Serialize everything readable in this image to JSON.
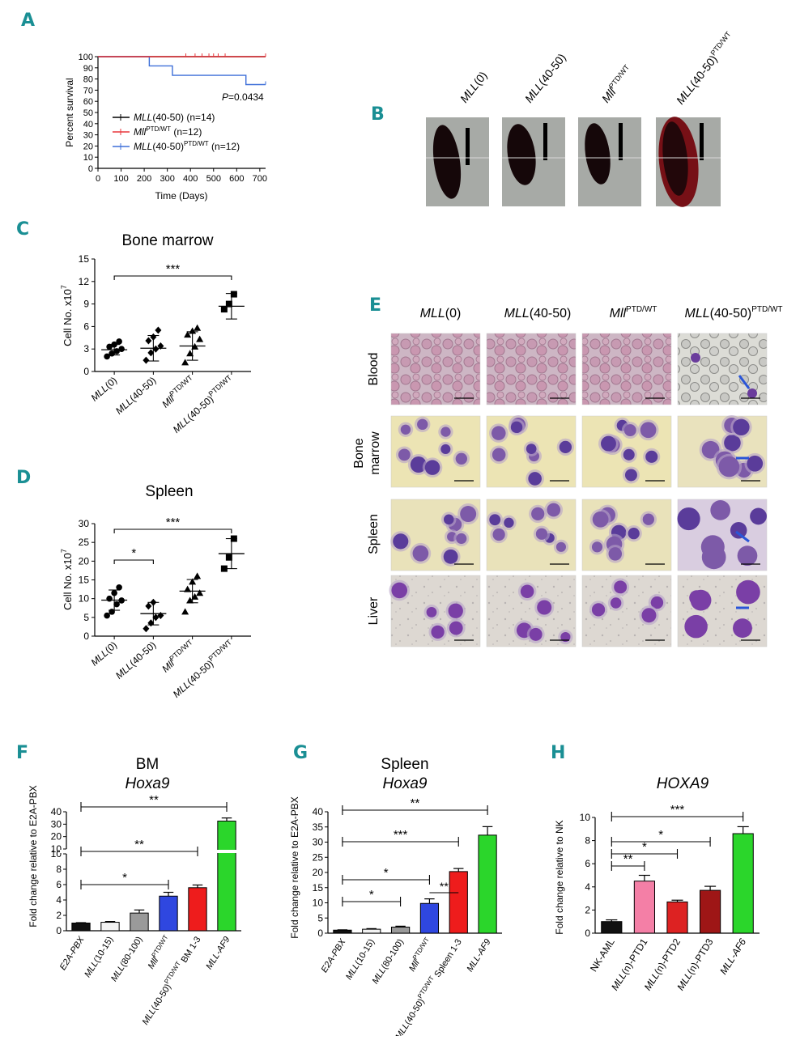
{
  "colors": {
    "panel_label": "#1a8f94",
    "black_series": "#000000",
    "red_series": "#e8373c",
    "blue_series": "#3d6fd8",
    "bar_black": "#111111",
    "bar_white": "#f2f2f2",
    "bar_gray": "#9a9a9a",
    "bar_blue": "#2f47e0",
    "bar_red": "#ee1c1c",
    "bar_green": "#2bd62b",
    "bar_pink": "#f47fa6",
    "bar_crimson": "#dd2222",
    "bar_darkred": "#9e1616"
  },
  "panels": {
    "A": {
      "label": "A",
      "ylabel": "Percent survival",
      "xlabel": "Time (Days)",
      "pvalue_prefix": "P",
      "pvalue_rest": "=0.0434",
      "legend": [
        {
          "pre": "MLL",
          "mid": "(40-50)",
          "sup": "",
          "post": " (n=14)"
        },
        {
          "pre": "Mll",
          "mid": "",
          "sup": "PTD/WT",
          "post": " (n=12)"
        },
        {
          "pre": "MLL",
          "mid": "(40-50)",
          "sup": "PTD/WT",
          "post": " (n=12)"
        }
      ]
    },
    "B": {
      "label": "B",
      "columns": [
        {
          "pre": "MLL",
          "mid": "(0)",
          "sup": ""
        },
        {
          "pre": "MLL",
          "mid": "(40-50)",
          "sup": ""
        },
        {
          "pre": "Mll",
          "mid": "",
          "sup": "PTD/WT"
        },
        {
          "pre": "MLL",
          "mid": "(40-50)",
          "sup": "PTD/WT"
        }
      ]
    },
    "C": {
      "label": "C",
      "title": "Bone marrow",
      "ylabel_main": "Cell No. x10",
      "ylabel_sup": "7",
      "sig": "***"
    },
    "D": {
      "label": "D",
      "title": "Spleen",
      "ylabel_main": "Cell No. x10",
      "ylabel_sup": "7",
      "sig_top": "***",
      "sig_low": "*"
    },
    "E": {
      "label": "E",
      "columns": [
        {
          "pre": "MLL",
          "mid": "(0)",
          "sup": ""
        },
        {
          "pre": "MLL",
          "mid": "(40-50)",
          "sup": ""
        },
        {
          "pre": "Mll",
          "mid": "",
          "sup": "PTD/WT"
        },
        {
          "pre": "MLL",
          "mid": "(40-50)",
          "sup": "PTD/WT"
        }
      ],
      "rows": [
        "Blood",
        "Bone",
        "marrow",
        "Spleen",
        "Liver"
      ]
    },
    "F": {
      "label": "F",
      "title1": "BM",
      "title2": "Hoxa9",
      "ylabel": "Fold change relative to E2A-PBX",
      "suffix": "BM 1-3",
      "sig": [
        "**",
        "**",
        "*"
      ]
    },
    "G": {
      "label": "G",
      "title1": "Spleen",
      "title2": "Hoxa9",
      "ylabel": "Fold change relative to E2A-PBX",
      "suffix": "Spleen 1-3",
      "sig": [
        "**",
        "***",
        "*",
        "*",
        "**"
      ]
    },
    "H": {
      "label": "H",
      "title": "HOXA9",
      "ylabel": "Fold change relative to NK",
      "sig": [
        "***",
        "*",
        "*",
        "**"
      ]
    }
  },
  "chart_data": [
    {
      "panel": "A",
      "type": "line",
      "xlabel": "Time (Days)",
      "ylabel": "Percent survival",
      "xlim": [
        0,
        725
      ],
      "ylim": [
        0,
        100
      ],
      "xticks": [
        0,
        100,
        200,
        300,
        400,
        500,
        600,
        700
      ],
      "yticks": [
        0,
        10,
        20,
        30,
        40,
        50,
        60,
        70,
        80,
        90,
        100
      ],
      "series": [
        {
          "name": "MLL(40-50) (n=14)",
          "x": [
            0,
            725
          ],
          "y": [
            100,
            100
          ]
        },
        {
          "name": "Mll PTD/WT (n=12)",
          "x": [
            0,
            725
          ],
          "y": [
            100,
            100
          ],
          "censor_x": [
            380,
            420,
            450,
            480,
            500,
            520,
            550,
            725
          ]
        },
        {
          "name": "MLL(40-50) PTD/WT (n=12)",
          "x": [
            0,
            222,
            222,
            322,
            322,
            640,
            640,
            725
          ],
          "y": [
            100,
            100,
            91.7,
            91.7,
            83.3,
            83.3,
            75,
            75
          ],
          "censor_x": [
            725
          ]
        }
      ],
      "annotation": "P=0.0434"
    },
    {
      "panel": "C",
      "type": "scatter",
      "title": "Bone marrow",
      "ylabel": "Cell No. x10^7",
      "ylim": [
        0,
        15
      ],
      "yticks": [
        0,
        3,
        6,
        9,
        12,
        15
      ],
      "categories": [
        "MLL(0)",
        "MLL(40-50)",
        "Mll PTD/WT",
        "MLL(40-50) PTD/WT"
      ],
      "points": [
        [
          2.0,
          2.4,
          2.7,
          3.0,
          3.3,
          3.6,
          4.0
        ],
        [
          1.5,
          2.5,
          3.0,
          3.4,
          4.1,
          4.6,
          5.5
        ],
        [
          1.2,
          2.4,
          3.3,
          4.3,
          4.9,
          5.4,
          5.8
        ],
        [
          8.3,
          9.0,
          10.3
        ]
      ],
      "mean": [
        2.9,
        3.1,
        3.4,
        8.7
      ],
      "sd": [
        0.7,
        1.7,
        1.9,
        1.7
      ],
      "comparisons": [
        {
          "from": 0,
          "to": 3,
          "label": "***"
        }
      ]
    },
    {
      "panel": "D",
      "type": "scatter",
      "title": "Spleen",
      "ylabel": "Cell No. x10^7",
      "ylim": [
        0,
        30
      ],
      "yticks": [
        0,
        5,
        10,
        15,
        20,
        25,
        30
      ],
      "categories": [
        "MLL(0)",
        "MLL(40-50)",
        "Mll PTD/WT",
        "MLL(40-50) PTD/WT"
      ],
      "points": [
        [
          5.5,
          6.5,
          8.5,
          9.5,
          10.0,
          11.5,
          13.0
        ],
        [
          2.0,
          3.5,
          5.0,
          5.5,
          8.0,
          9.0
        ],
        [
          6.5,
          9.5,
          10.5,
          11.5,
          12.5,
          14.5,
          16.0
        ],
        [
          18.0,
          21.0,
          26.0
        ]
      ],
      "mean": [
        9.6,
        6.0,
        12.0,
        22.0
      ],
      "sd": [
        2.7,
        3.0,
        3.1,
        4.0
      ],
      "comparisons": [
        {
          "from": 0,
          "to": 3,
          "label": "***"
        },
        {
          "from": 0,
          "to": 1,
          "label": "*"
        }
      ]
    },
    {
      "panel": "F",
      "type": "bar",
      "title": "BM Hoxa9",
      "ylabel": "Fold change relative to E2A-PBX",
      "categories": [
        "E2A-PBX",
        "MLL(10-15)",
        "MLL(80-100)",
        "Mll PTD/WT",
        "MLL(40-50) PTD/WT BM 1-3",
        "MLL-AF9"
      ],
      "values": [
        1.0,
        1.1,
        2.3,
        4.5,
        5.6,
        32.5
      ],
      "errors": [
        0.05,
        0.1,
        0.4,
        0.5,
        0.35,
        2.5
      ],
      "axis_break": true,
      "ylim_lower": [
        0,
        10
      ],
      "ylim_upper": [
        10,
        40
      ],
      "yticks_lower": [
        0,
        2,
        4,
        6,
        8,
        10
      ],
      "yticks_upper": [
        10,
        20,
        30,
        40
      ],
      "comparisons": [
        {
          "from": 0,
          "to": 5,
          "label": "**"
        },
        {
          "from": 0,
          "to": 4,
          "label": "**"
        },
        {
          "from": 0,
          "to": 3,
          "label": "*"
        }
      ]
    },
    {
      "panel": "G",
      "type": "bar",
      "title": "Spleen Hoxa9",
      "ylabel": "Fold change relative to E2A-PBX",
      "categories": [
        "E2A-PBX",
        "MLL(10-15)",
        "MLL(80-100)",
        "Mll PTD/WT",
        "MLL(40-50) PTD/WT Spleen 1-3",
        "MLL-AF9"
      ],
      "values": [
        1.0,
        1.3,
        2.0,
        9.8,
        20.3,
        32.3
      ],
      "errors": [
        0.1,
        0.2,
        0.3,
        1.5,
        1.0,
        2.8
      ],
      "ylim": [
        0,
        40
      ],
      "yticks": [
        0,
        5,
        10,
        15,
        20,
        25,
        30,
        35,
        40
      ],
      "comparisons": [
        {
          "from": 0,
          "to": 5,
          "label": "**"
        },
        {
          "from": 0,
          "to": 4,
          "label": "***"
        },
        {
          "from": 0,
          "to": 3,
          "label": "*"
        },
        {
          "from": 0,
          "to": 2,
          "label": "*"
        },
        {
          "from": 3,
          "to": 4,
          "label": "**"
        }
      ]
    },
    {
      "panel": "H",
      "type": "bar",
      "title": "HOXA9",
      "ylabel": "Fold change relative to NK",
      "categories": [
        "NK-AML",
        "MLL(n)-PTD1",
        "MLL(n)-PTD2",
        "MLL(n)-PTD3",
        "MLL-AF6"
      ],
      "values": [
        1.0,
        4.5,
        2.7,
        3.7,
        8.6
      ],
      "errors": [
        0.15,
        0.5,
        0.15,
        0.35,
        0.6
      ],
      "ylim": [
        0,
        10
      ],
      "yticks": [
        0,
        2,
        4,
        6,
        8,
        10
      ],
      "comparisons": [
        {
          "from": 0,
          "to": 4,
          "label": "***"
        },
        {
          "from": 0,
          "to": 3,
          "label": "*"
        },
        {
          "from": 0,
          "to": 2,
          "label": "*"
        },
        {
          "from": 0,
          "to": 1,
          "label": "**"
        }
      ]
    }
  ]
}
